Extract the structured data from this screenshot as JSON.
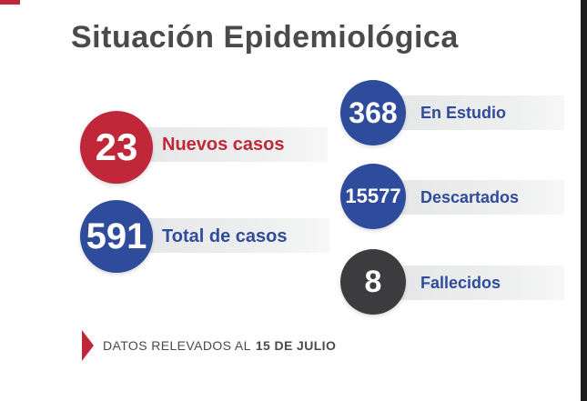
{
  "title": "Situación Epidemiológica",
  "colors": {
    "red": "#c0283a",
    "blue": "#2f4c9c",
    "gray": "#3c3c3e",
    "text": "#4a4a4a"
  },
  "stats": {
    "nuevos": {
      "value": "23",
      "label": "Nuevos casos"
    },
    "total": {
      "value": "591",
      "label": "Total de casos"
    },
    "estudio": {
      "value": "368",
      "label": "En Estudio"
    },
    "descartados": {
      "value": "15577",
      "label": "Descartados"
    },
    "fallecidos": {
      "value": "8",
      "label": "Fallecidos"
    }
  },
  "footer": {
    "text": "DATOS RELEVADOS AL",
    "date": "15 DE JULIO"
  }
}
